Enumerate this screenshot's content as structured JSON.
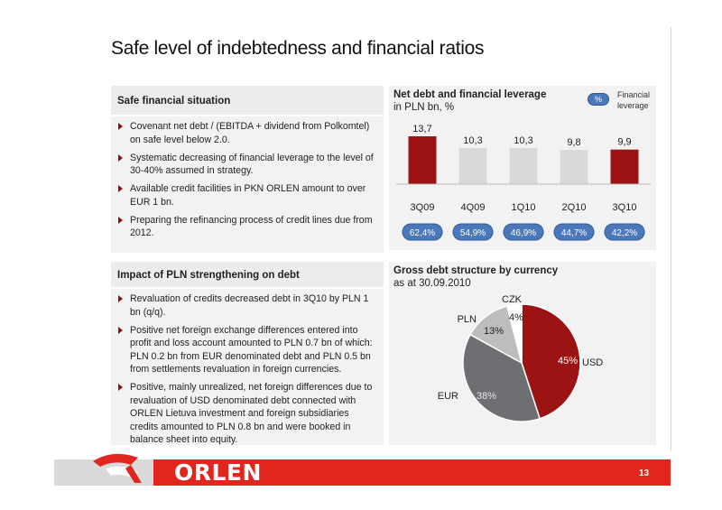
{
  "page": {
    "title": "Safe level of indebtedness and financial ratios",
    "page_number": "13",
    "logo_text": "ORLEN"
  },
  "left_top": {
    "heading": "Safe financial situation",
    "bullets": [
      "Covenant net debt / (EBITDA + dividend from Polkomtel) on safe level below 2.0.",
      "Systematic decreasing of financial leverage to the level of 30-40% assumed in strategy.",
      "Available credit facilities in PKN ORLEN amount to over EUR 1 bn.",
      "Preparing the refinancing process of credit lines due from 2012."
    ]
  },
  "left_bottom": {
    "heading": "Impact of PLN strengthening on debt",
    "bullets": [
      "Revaluation of credits decreased debt in 3Q10 by PLN 1 bn (q/q).",
      "Positive net foreign exchange differences entered into profit and loss account amounted to PLN 0.7 bn of which: PLN 0.2 bn from EUR denominated debt and PLN 0.5 bn from settlements revaluation in foreign currencies.",
      "Positive, mainly unrealized, net foreign differences due to revaluation of USD denominated debt connected with ORLEN Lietuva investment and foreign subsidiaries credits amounted to PLN 0.8 bn and were booked in balance sheet into equity."
    ]
  },
  "chart_data": [
    {
      "type": "bar",
      "title": "Net debt and financial leverage",
      "subtitle": "in PLN bn, %",
      "categories": [
        "3Q09",
        "4Q09",
        "1Q10",
        "2Q10",
        "3Q10"
      ],
      "values": [
        13.7,
        10.3,
        10.3,
        9.8,
        9.9
      ],
      "value_labels": [
        "13,7",
        "10,3",
        "10,3",
        "9,8",
        "9,9"
      ],
      "leverage_labels": [
        "62,4%",
        "54,9%",
        "46,9%",
        "44,7%",
        "42,2%"
      ],
      "legend": {
        "marker": "%",
        "label": "Financial leverage"
      },
      "colors": {
        "highlight": "#9b1313",
        "other": "#d9d9d9",
        "pill": "#4a78b8"
      },
      "highlighted": [
        "3Q09",
        "3Q10"
      ]
    },
    {
      "type": "pie",
      "title": "Gross debt structure by currency",
      "subtitle": "as at 30.09.2010",
      "labels": [
        "USD",
        "EUR",
        "PLN",
        "CZK"
      ],
      "values": [
        45,
        38,
        13,
        4
      ],
      "value_labels": [
        "45%",
        "38%",
        "13%",
        "4%"
      ],
      "colors": [
        "#9b1313",
        "#6d6f72",
        "#bdbdbd",
        "#ffffff"
      ]
    }
  ]
}
